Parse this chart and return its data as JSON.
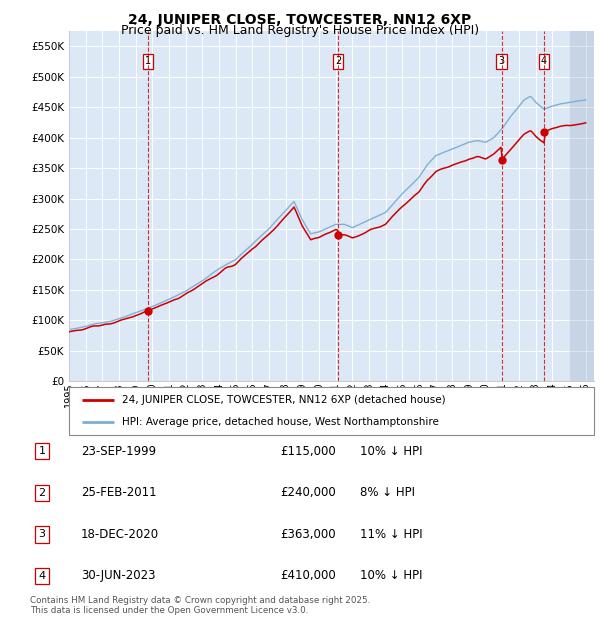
{
  "title": "24, JUNIPER CLOSE, TOWCESTER, NN12 6XP",
  "subtitle": "Price paid vs. HM Land Registry's House Price Index (HPI)",
  "ylim": [
    0,
    575000
  ],
  "yticks": [
    0,
    50000,
    100000,
    150000,
    200000,
    250000,
    300000,
    350000,
    400000,
    450000,
    500000,
    550000
  ],
  "ytick_labels": [
    "£0",
    "£50K",
    "£100K",
    "£150K",
    "£200K",
    "£250K",
    "£300K",
    "£350K",
    "£400K",
    "£450K",
    "£500K",
    "£550K"
  ],
  "background_color": "#dce8f5",
  "grid_color": "#ffffff",
  "sale_year_floats": [
    1999.73,
    2011.14,
    2020.96,
    2023.5
  ],
  "sale_prices": [
    115000,
    240000,
    363000,
    410000
  ],
  "sale_labels": [
    "1",
    "2",
    "3",
    "4"
  ],
  "sale_label_text": [
    "23-SEP-1999",
    "25-FEB-2011",
    "18-DEC-2020",
    "30-JUN-2023"
  ],
  "sale_price_text": [
    "£115,000",
    "£240,000",
    "£363,000",
    "£410,000"
  ],
  "sale_discount_text": [
    "10% ↓ HPI",
    "8% ↓ HPI",
    "11% ↓ HPI",
    "10% ↓ HPI"
  ],
  "red_line_color": "#cc0000",
  "blue_line_color": "#7aadd4",
  "vline_color": "#cc0000",
  "legend_label_red": "24, JUNIPER CLOSE, TOWCESTER, NN12 6XP (detached house)",
  "legend_label_blue": "HPI: Average price, detached house, West Northamptonshire",
  "footer_text": "Contains HM Land Registry data © Crown copyright and database right 2025.\nThis data is licensed under the Open Government Licence v3.0.",
  "title_fontsize": 10,
  "subtitle_fontsize": 9,
  "tick_fontsize": 7.5
}
